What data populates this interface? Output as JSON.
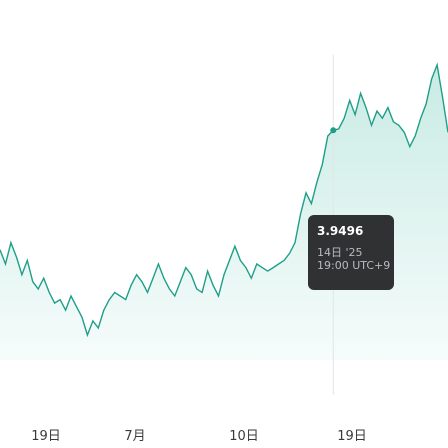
{
  "chart_data": {
    "type": "area",
    "title": "",
    "xlabel": "",
    "ylabel": "",
    "x_tick_labels": [
      "19日",
      "7月",
      "10日",
      "19日"
    ],
    "hover_index": 61,
    "ylim": [
      3.885,
      3.975
    ],
    "y": [
      3.916,
      3.912,
      3.918,
      3.914,
      3.909,
      3.913,
      3.907,
      3.905,
      3.908,
      3.904,
      3.901,
      3.902,
      3.899,
      3.903,
      3.9,
      3.897,
      3.892,
      3.896,
      3.894,
      3.899,
      3.902,
      3.904,
      3.903,
      3.902,
      3.906,
      3.909,
      3.907,
      3.904,
      3.908,
      3.912,
      3.908,
      3.905,
      3.903,
      3.907,
      3.911,
      3.909,
      3.905,
      3.904,
      3.91,
      3.906,
      3.903,
      3.909,
      3.913,
      3.917,
      3.913,
      3.911,
      3.908,
      3.912,
      3.911,
      3.91,
      3.911,
      3.912,
      3.913,
      3.915,
      3.918,
      3.926,
      3.932,
      3.929,
      3.935,
      3.94,
      3.948,
      3.9496,
      3.95,
      3.953,
      3.958,
      3.954,
      3.96,
      3.956,
      3.951,
      3.955,
      3.953,
      3.956,
      3.952,
      3.951,
      3.949,
      3.945,
      3.948,
      3.953,
      3.957,
      3.964,
      3.968,
      3.959,
      3.949
    ]
  },
  "tooltip": {
    "value": "3.9496",
    "date": "14日 '25",
    "time": "19:00 UTC+9"
  },
  "colors": {
    "line": "#1f9e8a",
    "fill_top": "#c9ebe4",
    "fill_bottom": "#f6fcfb",
    "crosshair": "#e2e5e8",
    "dot": "#1f9e8a"
  }
}
